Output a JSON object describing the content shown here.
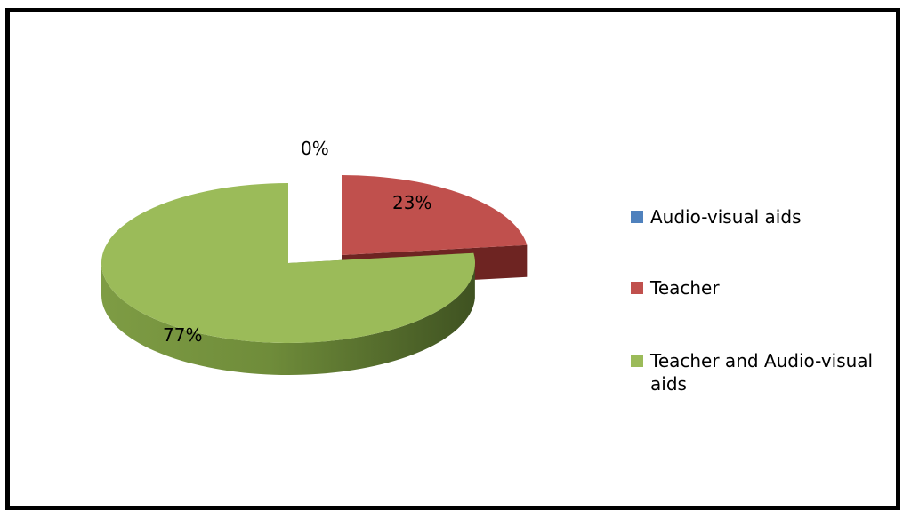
{
  "chart_data": {
    "type": "pie",
    "variant": "3d-exploded",
    "slices": [
      {
        "name": "Audio-visual aids",
        "value": 0,
        "label": "0%",
        "color": "#4F81BD",
        "side_color": "#2E4E75"
      },
      {
        "name": "Teacher",
        "value": 23,
        "label": "23%",
        "color": "#C0504D",
        "side_color": "#6E2422"
      },
      {
        "name": "Teacher and Audio-visual aids",
        "value": 77,
        "label": "77%",
        "color": "#9BBB59",
        "side_color": "#5B7430"
      }
    ],
    "legend_position": "right"
  }
}
